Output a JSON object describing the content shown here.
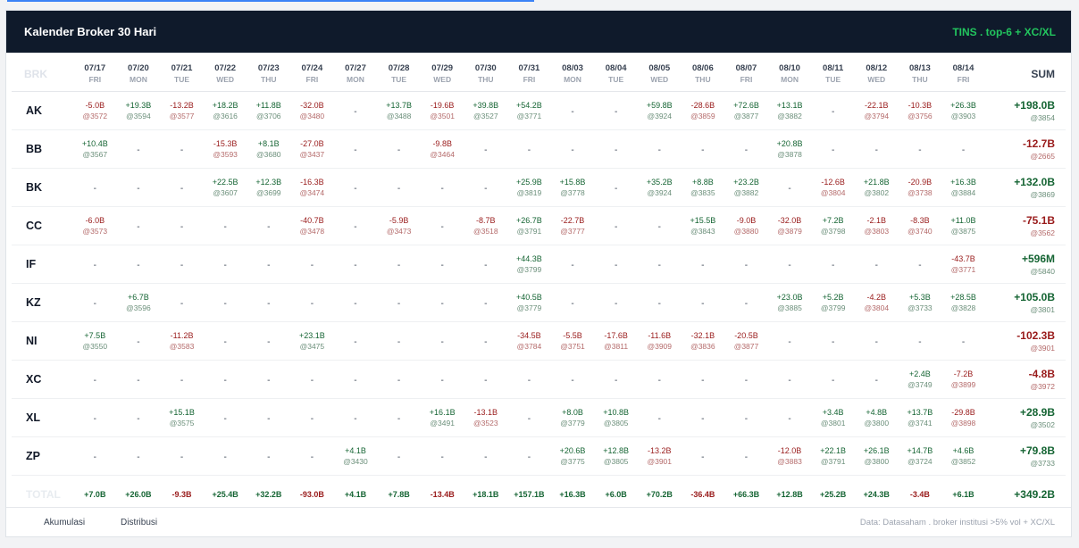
{
  "header": {
    "title": "Kalender Broker 30 Hari",
    "right": "TINS . top-6 + XC/XL"
  },
  "table": {
    "brk_label": "BRK",
    "sum_label": "SUM",
    "total_label": "TOTAL",
    "dates": [
      {
        "d": "07/17",
        "w": "FRI"
      },
      {
        "d": "07/20",
        "w": "MON"
      },
      {
        "d": "07/21",
        "w": "TUE"
      },
      {
        "d": "07/22",
        "w": "WED"
      },
      {
        "d": "07/23",
        "w": "THU"
      },
      {
        "d": "07/24",
        "w": "FRI"
      },
      {
        "d": "07/27",
        "w": "MON"
      },
      {
        "d": "07/28",
        "w": "TUE"
      },
      {
        "d": "07/29",
        "w": "WED"
      },
      {
        "d": "07/30",
        "w": "THU"
      },
      {
        "d": "07/31",
        "w": "FRI"
      },
      {
        "d": "08/03",
        "w": "MON"
      },
      {
        "d": "08/04",
        "w": "TUE"
      },
      {
        "d": "08/05",
        "w": "WED"
      },
      {
        "d": "08/06",
        "w": "THU"
      },
      {
        "d": "08/07",
        "w": "FRI"
      },
      {
        "d": "08/10",
        "w": "MON"
      },
      {
        "d": "08/11",
        "w": "TUE"
      },
      {
        "d": "08/12",
        "w": "WED"
      },
      {
        "d": "08/13",
        "w": "THU"
      },
      {
        "d": "08/14",
        "w": "FRI"
      }
    ],
    "rows": [
      {
        "broker": "AK",
        "cells": [
          [
            "-5.0B",
            "@3572"
          ],
          [
            "+19.3B",
            "@3594"
          ],
          [
            "-13.2B",
            "@3577"
          ],
          [
            "+18.2B",
            "@3616"
          ],
          [
            "+11.8B",
            "@3706"
          ],
          [
            "-32.0B",
            "@3480"
          ],
          null,
          [
            "+13.7B",
            "@3488"
          ],
          [
            "-19.6B",
            "@3501"
          ],
          [
            "+39.8B",
            "@3527"
          ],
          [
            "+54.2B",
            "@3771"
          ],
          null,
          null,
          [
            "+59.8B",
            "@3924"
          ],
          [
            "-28.6B",
            "@3859"
          ],
          [
            "+72.6B",
            "@3877"
          ],
          [
            "+13.1B",
            "@3882"
          ],
          null,
          [
            "-22.1B",
            "@3794"
          ],
          [
            "-10.3B",
            "@3756"
          ],
          [
            "+26.3B",
            "@3903"
          ]
        ],
        "sum": [
          "+198.0B",
          "@3854"
        ]
      },
      {
        "broker": "BB",
        "cells": [
          [
            "+10.4B",
            "@3567"
          ],
          null,
          null,
          [
            "-15.3B",
            "@3593"
          ],
          [
            "+8.1B",
            "@3680"
          ],
          [
            "-27.0B",
            "@3437"
          ],
          null,
          null,
          [
            "-9.8B",
            "@3464"
          ],
          null,
          null,
          null,
          null,
          null,
          null,
          null,
          [
            "+20.8B",
            "@3878"
          ],
          null,
          null,
          null,
          null
        ],
        "sum": [
          "-12.7B",
          "@2665"
        ]
      },
      {
        "broker": "BK",
        "cells": [
          null,
          null,
          null,
          [
            "+22.5B",
            "@3607"
          ],
          [
            "+12.3B",
            "@3699"
          ],
          [
            "-16.3B",
            "@3474"
          ],
          null,
          null,
          null,
          null,
          [
            "+25.9B",
            "@3819"
          ],
          [
            "+15.8B",
            "@3778"
          ],
          null,
          [
            "+35.2B",
            "@3924"
          ],
          [
            "+8.8B",
            "@3835"
          ],
          [
            "+23.2B",
            "@3882"
          ],
          null,
          [
            "-12.6B",
            "@3804"
          ],
          [
            "+21.8B",
            "@3802"
          ],
          [
            "-20.9B",
            "@3738"
          ],
          [
            "+16.3B",
            "@3884"
          ]
        ],
        "sum": [
          "+132.0B",
          "@3869"
        ]
      },
      {
        "broker": "CC",
        "cells": [
          [
            "-6.0B",
            "@3573"
          ],
          null,
          null,
          null,
          null,
          [
            "-40.7B",
            "@3478"
          ],
          null,
          [
            "-5.9B",
            "@3473"
          ],
          null,
          [
            "-8.7B",
            "@3518"
          ],
          [
            "+26.7B",
            "@3791"
          ],
          [
            "-22.7B",
            "@3777"
          ],
          null,
          null,
          [
            "+15.5B",
            "@3843"
          ],
          [
            "-9.0B",
            "@3880"
          ],
          [
            "-32.0B",
            "@3879"
          ],
          [
            "+7.2B",
            "@3798"
          ],
          [
            "-2.1B",
            "@3803"
          ],
          [
            "-8.3B",
            "@3740"
          ],
          [
            "+11.0B",
            "@3875"
          ]
        ],
        "sum": [
          "-75.1B",
          "@3562"
        ]
      },
      {
        "broker": "IF",
        "cells": [
          null,
          null,
          null,
          null,
          null,
          null,
          null,
          null,
          null,
          null,
          [
            "+44.3B",
            "@3799"
          ],
          null,
          null,
          null,
          null,
          null,
          null,
          null,
          null,
          null,
          [
            "-43.7B",
            "@3771"
          ]
        ],
        "sum": [
          "+596M",
          "@5840"
        ]
      },
      {
        "broker": "KZ",
        "cells": [
          null,
          [
            "+6.7B",
            "@3596"
          ],
          null,
          null,
          null,
          null,
          null,
          null,
          null,
          null,
          [
            "+40.5B",
            "@3779"
          ],
          null,
          null,
          null,
          null,
          null,
          [
            "+23.0B",
            "@3885"
          ],
          [
            "+5.2B",
            "@3799"
          ],
          [
            "-4.2B",
            "@3804"
          ],
          [
            "+5.3B",
            "@3733"
          ],
          [
            "+28.5B",
            "@3828"
          ]
        ],
        "sum": [
          "+105.0B",
          "@3801"
        ]
      },
      {
        "broker": "NI",
        "cells": [
          [
            "+7.5B",
            "@3550"
          ],
          null,
          [
            "-11.2B",
            "@3583"
          ],
          null,
          null,
          [
            "+23.1B",
            "@3475"
          ],
          null,
          null,
          null,
          null,
          [
            "-34.5B",
            "@3784"
          ],
          [
            "-5.5B",
            "@3751"
          ],
          [
            "-17.6B",
            "@3811"
          ],
          [
            "-11.6B",
            "@3909"
          ],
          [
            "-32.1B",
            "@3836"
          ],
          [
            "-20.5B",
            "@3877"
          ],
          null,
          null,
          null,
          null,
          null
        ],
        "sum": [
          "-102.3B",
          "@3901"
        ]
      },
      {
        "broker": "XC",
        "cells": [
          null,
          null,
          null,
          null,
          null,
          null,
          null,
          null,
          null,
          null,
          null,
          null,
          null,
          null,
          null,
          null,
          null,
          null,
          null,
          [
            "+2.4B",
            "@3749"
          ],
          [
            "-7.2B",
            "@3899"
          ]
        ],
        "sum": [
          "-4.8B",
          "@3972"
        ]
      },
      {
        "broker": "XL",
        "cells": [
          null,
          null,
          [
            "+15.1B",
            "@3575"
          ],
          null,
          null,
          null,
          null,
          null,
          [
            "+16.1B",
            "@3491"
          ],
          [
            "-13.1B",
            "@3523"
          ],
          null,
          [
            "+8.0B",
            "@3779"
          ],
          [
            "+10.8B",
            "@3805"
          ],
          null,
          null,
          null,
          null,
          [
            "+3.4B",
            "@3801"
          ],
          [
            "+4.8B",
            "@3800"
          ],
          [
            "+13.7B",
            "@3741"
          ],
          [
            "-29.8B",
            "@3898"
          ]
        ],
        "sum": [
          "+28.9B",
          "@3502"
        ]
      },
      {
        "broker": "ZP",
        "cells": [
          null,
          null,
          null,
          null,
          null,
          null,
          [
            "+4.1B",
            "@3430"
          ],
          null,
          null,
          null,
          null,
          [
            "+20.6B",
            "@3775"
          ],
          [
            "+12.8B",
            "@3805"
          ],
          [
            "-13.2B",
            "@3901"
          ],
          null,
          null,
          [
            "-12.0B",
            "@3883"
          ],
          [
            "+22.1B",
            "@3791"
          ],
          [
            "+26.1B",
            "@3800"
          ],
          [
            "+14.7B",
            "@3724"
          ],
          [
            "+4.6B",
            "@3852"
          ]
        ],
        "sum": [
          "+79.8B",
          "@3733"
        ]
      }
    ],
    "totals": [
      "+7.0B",
      "+26.0B",
      "-9.3B",
      "+25.4B",
      "+32.2B",
      "-93.0B",
      "+4.1B",
      "+7.8B",
      "-13.4B",
      "+18.1B",
      "+157.1B",
      "+16.3B",
      "+6.0B",
      "+70.2B",
      "-36.4B",
      "+66.3B",
      "+12.8B",
      "+25.2B",
      "+24.3B",
      "-3.4B",
      "+6.1B"
    ],
    "grand_total": "+349.2B"
  },
  "footer": {
    "akumulasi": "Akumulasi",
    "distribusi": "Distribusi",
    "source": "Data: Datasaham . broker institusi >5% vol + XC/XL"
  },
  "colors": {
    "header_bg": "#0f1a2b",
    "accent": "#22c55e",
    "positive": "#166534",
    "negative": "#991b1b"
  }
}
